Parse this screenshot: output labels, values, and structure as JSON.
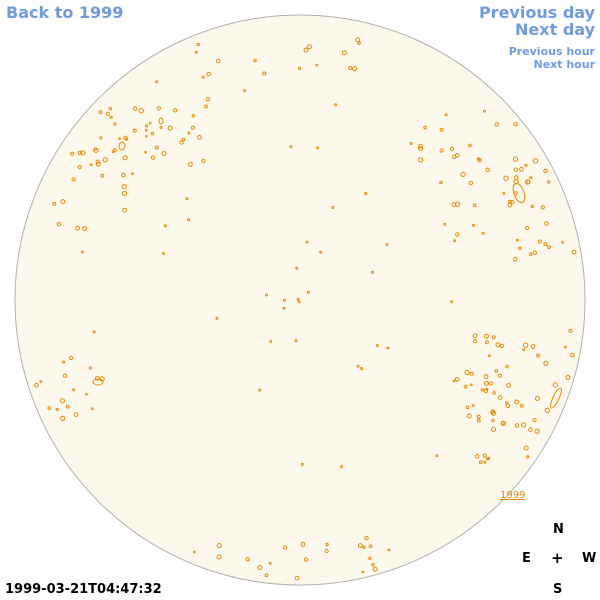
{
  "navigation": {
    "back_label": "Back to 1999",
    "previous_day_label": "Previous day",
    "next_day_label": "Next day",
    "previous_hour_label": "Previous hour",
    "next_hour_label": "Next hour"
  },
  "disk": {
    "year_label": "1999",
    "colors": {
      "disk_fill": "#fdf8ec",
      "contour": "#e88b00",
      "link": "#6f9be6"
    }
  },
  "compass": {
    "north": "N",
    "east": "E",
    "center": "+",
    "west": "W",
    "south": "S"
  },
  "timestamp": "1999-03-21T04:47:32"
}
